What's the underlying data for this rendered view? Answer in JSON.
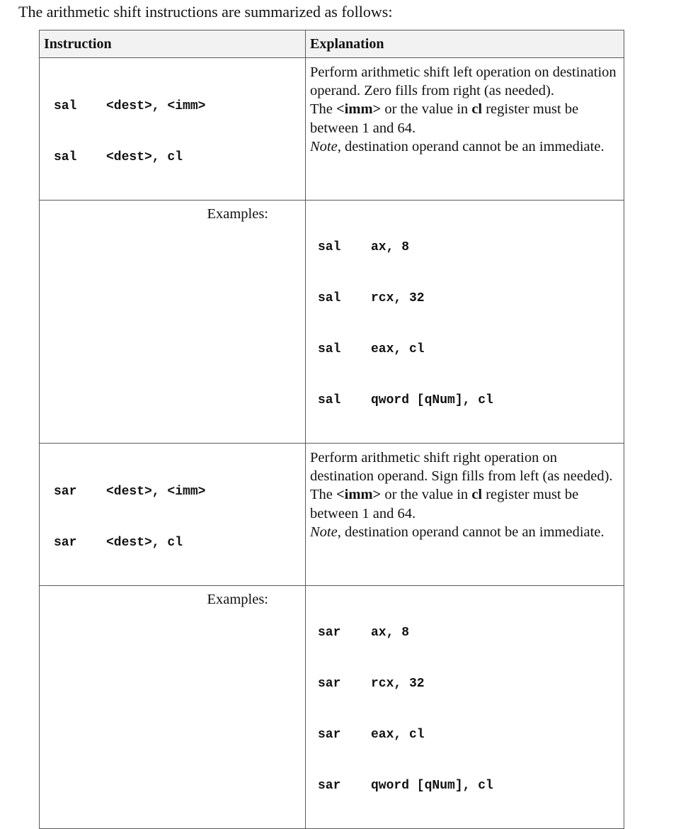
{
  "intro": "The arithmetic shift instructions are summarized as follows:",
  "headers": {
    "instruction": "Instruction",
    "explanation": "Explanation"
  },
  "examples_label": "Examples:",
  "sal": {
    "syntax": [
      {
        "op": "sal",
        "args": "<dest>, <imm>"
      },
      {
        "op": "sal",
        "args": "<dest>, cl"
      }
    ],
    "explanation": {
      "line1": "Perform arithmetic shift left operation on destination operand.  Zero fills from right (as needed).",
      "line2_a": "The ",
      "line2_b": "<imm>",
      "line2_c": " or the value in ",
      "line2_d": "cl",
      "line2_e": " register must be between 1 and 64.",
      "note_label": "Note",
      "note_text": ", destination operand cannot be an immediate."
    },
    "examples": [
      {
        "op": "sal",
        "args": "ax, 8"
      },
      {
        "op": "sal",
        "args": "rcx, 32"
      },
      {
        "op": "sal",
        "args": "eax, cl"
      },
      {
        "op": "sal",
        "args": "qword [qNum], cl"
      }
    ]
  },
  "sar": {
    "syntax": [
      {
        "op": "sar",
        "args": "<dest>, <imm>"
      },
      {
        "op": "sar",
        "args": "<dest>, cl"
      }
    ],
    "explanation": {
      "line1": "Perform arithmetic shift right operation on destination operand.  Sign fills from left (as needed).",
      "line2_a": "The ",
      "line2_b": "<imm>",
      "line2_c": " or the value in ",
      "line2_d": "cl",
      "line2_e": " register must be between 1 and 64.",
      "note_label": "Note",
      "note_text": ", destination operand cannot be an immediate."
    },
    "examples": [
      {
        "op": "sar",
        "args": "ax, 8"
      },
      {
        "op": "sar",
        "args": "rcx, 32"
      },
      {
        "op": "sar",
        "args": "eax, cl"
      },
      {
        "op": "sar",
        "args": "qword [qNum], cl"
      }
    ]
  }
}
